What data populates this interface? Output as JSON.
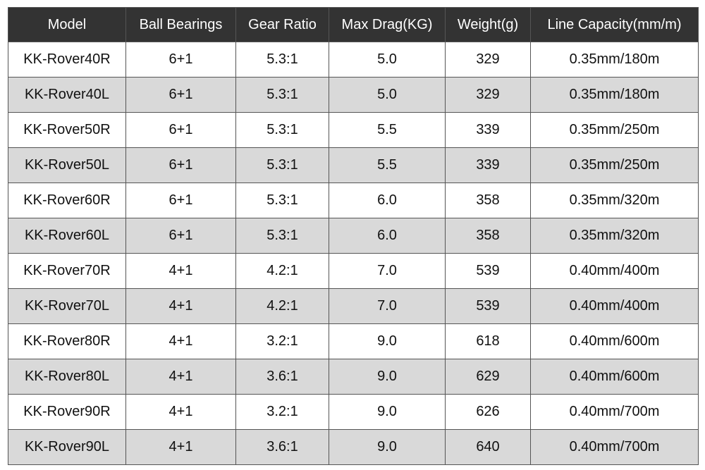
{
  "table": {
    "header": [
      "Model",
      "Ball Bearings",
      "Gear Ratio",
      "Max Drag(KG)",
      "Weight(g)",
      "Line Capacity(mm/m)"
    ],
    "rows": [
      [
        "KK-Rover40R",
        "6+1",
        "5.3:1",
        "5.0",
        "329",
        "0.35mm/180m"
      ],
      [
        "KK-Rover40L",
        "6+1",
        "5.3:1",
        "5.0",
        "329",
        "0.35mm/180m"
      ],
      [
        "KK-Rover50R",
        "6+1",
        "5.3:1",
        "5.5",
        "339",
        "0.35mm/250m"
      ],
      [
        "KK-Rover50L",
        "6+1",
        "5.3:1",
        "5.5",
        "339",
        "0.35mm/250m"
      ],
      [
        "KK-Rover60R",
        "6+1",
        "5.3:1",
        "6.0",
        "358",
        "0.35mm/320m"
      ],
      [
        "KK-Rover60L",
        "6+1",
        "5.3:1",
        "6.0",
        "358",
        "0.35mm/320m"
      ],
      [
        "KK-Rover70R",
        "4+1",
        "4.2:1",
        "7.0",
        "539",
        "0.40mm/400m"
      ],
      [
        "KK-Rover70L",
        "4+1",
        "4.2:1",
        "7.0",
        "539",
        "0.40mm/400m"
      ],
      [
        "KK-Rover80R",
        "4+1",
        "3.2:1",
        "9.0",
        "618",
        "0.40mm/600m"
      ],
      [
        "KK-Rover80L",
        "4+1",
        "3.6:1",
        "9.0",
        "629",
        "0.40mm/600m"
      ],
      [
        "KK-Rover90R",
        "4+1",
        "3.2:1",
        "9.0",
        "626",
        "0.40mm/700m"
      ],
      [
        "KK-Rover90L",
        "4+1",
        "3.6:1",
        "9.0",
        "640",
        "0.40mm/700m"
      ]
    ]
  }
}
